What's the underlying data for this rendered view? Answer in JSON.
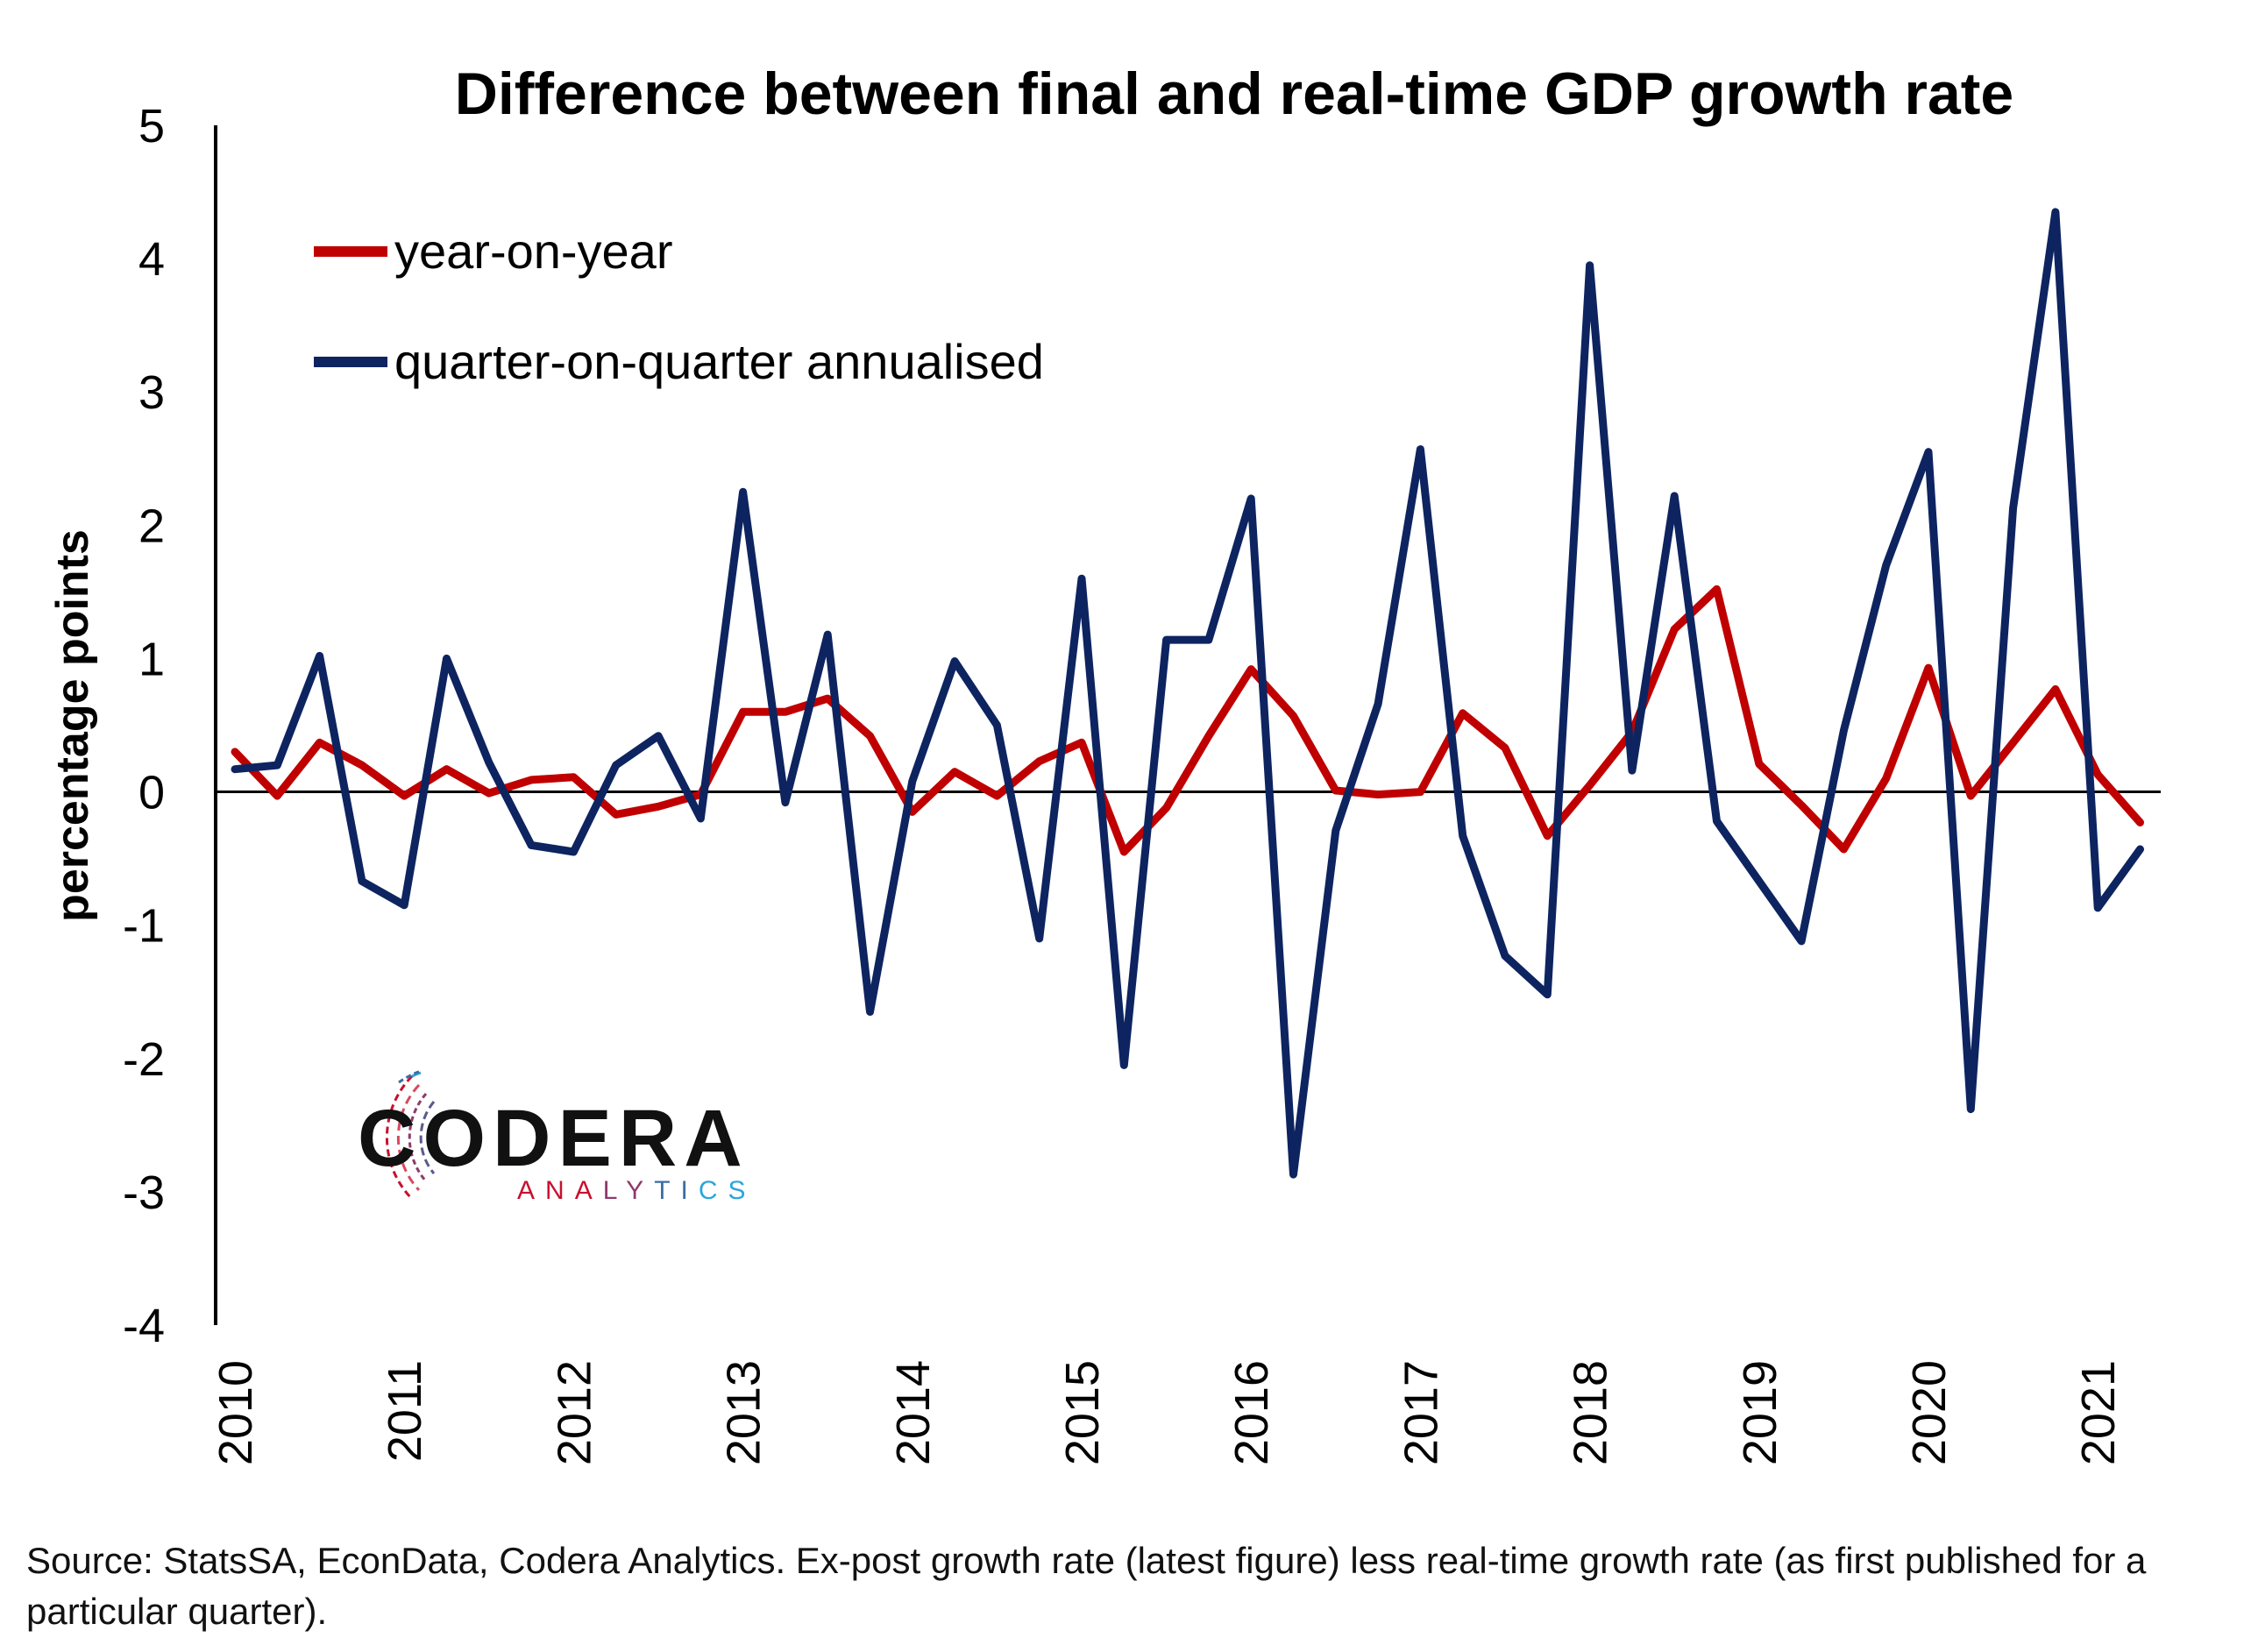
{
  "chart_data": {
    "type": "line",
    "title": "Difference between final and real-time GDP growth rate",
    "ylabel": "percentage points",
    "xlabel": "",
    "ylim": [
      -4,
      5
    ],
    "yticks": [
      -4,
      -3,
      -2,
      -1,
      0,
      1,
      2,
      3,
      4,
      5
    ],
    "x_start_year": 2010,
    "periods_per_year": 4,
    "xtick_labels": [
      "2010",
      "2011",
      "2012",
      "2013",
      "2014",
      "2015",
      "2016",
      "2017",
      "2018",
      "2019",
      "2020",
      "2021"
    ],
    "legend_position": "top-left",
    "series": [
      {
        "name": "year-on-year",
        "color": "#C00000",
        "values": [
          0.3,
          -0.03,
          0.37,
          0.2,
          -0.03,
          0.17,
          -0.01,
          0.09,
          0.11,
          -0.17,
          -0.11,
          -0.02,
          0.6,
          0.6,
          0.7,
          0.42,
          -0.15,
          0.15,
          -0.03,
          0.23,
          0.37,
          -0.45,
          -0.12,
          0.42,
          0.92,
          0.57,
          0.01,
          -0.02,
          0.0,
          0.59,
          0.33,
          -0.33,
          0.05,
          0.45,
          1.22,
          1.52,
          0.21,
          -0.1,
          -0.43,
          0.1,
          0.93,
          -0.03,
          0.37,
          0.77,
          0.13,
          -0.23
        ]
      },
      {
        "name": "quarter-on-quarter annualised",
        "color": "#0D2460",
        "values": [
          0.17,
          0.2,
          1.02,
          -0.67,
          -0.85,
          1.0,
          0.22,
          -0.4,
          -0.45,
          0.2,
          0.42,
          -0.2,
          2.25,
          -0.08,
          1.18,
          -1.65,
          0.08,
          0.98,
          0.5,
          -1.1,
          1.6,
          -2.05,
          1.14,
          1.14,
          2.2,
          -2.87,
          -0.29,
          0.66,
          2.57,
          -0.33,
          -1.23,
          -1.52,
          3.95,
          0.16,
          2.22,
          -0.22,
          -0.67,
          -1.12,
          0.46,
          1.7,
          2.55,
          -2.38,
          2.13,
          4.35,
          -0.87,
          -0.43
        ]
      }
    ]
  },
  "logo": {
    "name": "CODERA",
    "tagline": "ANALYTICS",
    "colors": [
      "#C8102E",
      "#8E3A6B",
      "#3A6EA5",
      "#2BA6D9"
    ]
  },
  "source_note": "Source: StatsSA, EconData, Codera Analytics. Ex-post growth rate (latest figure) less real-time growth rate (as first published for a particular quarter)."
}
